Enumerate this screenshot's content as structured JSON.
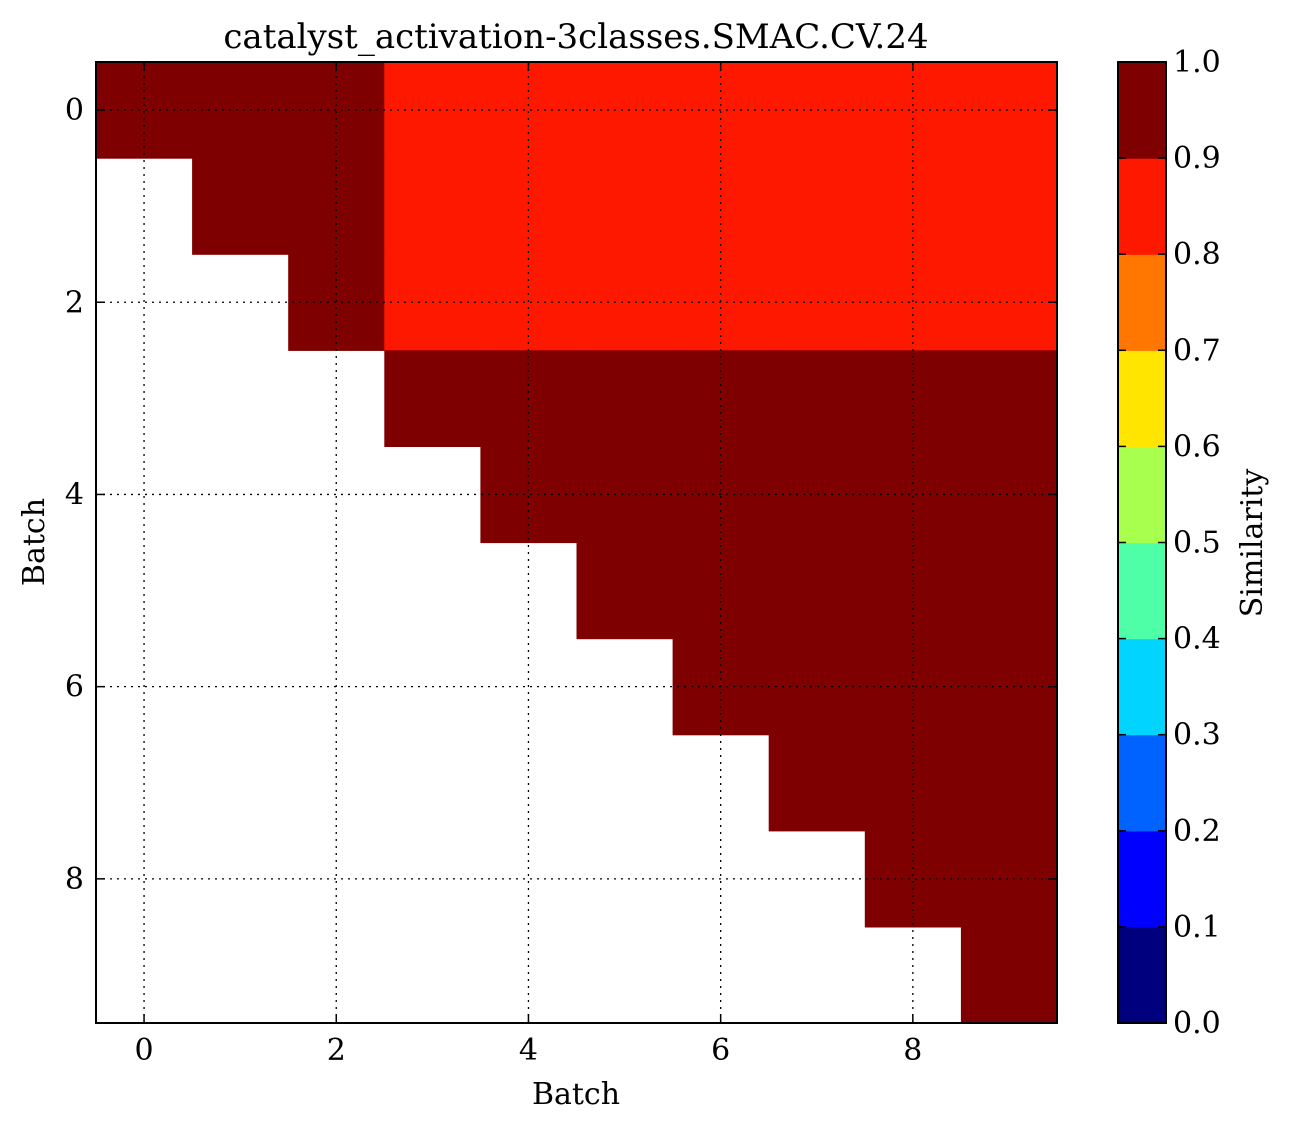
{
  "chart_data": {
    "type": "heatmap",
    "title": "catalyst_activation-3classes.SMAC.CV.24",
    "xlabel": "Batch",
    "ylabel": "Batch",
    "x_ticks": [
      "0",
      "2",
      "4",
      "6",
      "8"
    ],
    "y_ticks": [
      "0",
      "2",
      "4",
      "6",
      "8"
    ],
    "xlim": [
      -0.5,
      9.5
    ],
    "ylim": [
      9.5,
      -0.5
    ],
    "grid": true,
    "matrix": [
      [
        1.0,
        1.0,
        1.0,
        0.85,
        0.85,
        0.85,
        0.85,
        0.85,
        0.85,
        0.85
      ],
      [
        null,
        1.0,
        1.0,
        0.85,
        0.85,
        0.85,
        0.85,
        0.85,
        0.85,
        0.85
      ],
      [
        null,
        null,
        1.0,
        0.85,
        0.85,
        0.85,
        0.85,
        0.85,
        0.85,
        0.85
      ],
      [
        null,
        null,
        null,
        1.0,
        1.0,
        1.0,
        1.0,
        1.0,
        1.0,
        1.0
      ],
      [
        null,
        null,
        null,
        null,
        1.0,
        1.0,
        1.0,
        1.0,
        1.0,
        1.0
      ],
      [
        null,
        null,
        null,
        null,
        null,
        1.0,
        1.0,
        1.0,
        1.0,
        1.0
      ],
      [
        null,
        null,
        null,
        null,
        null,
        null,
        1.0,
        1.0,
        1.0,
        1.0
      ],
      [
        null,
        null,
        null,
        null,
        null,
        null,
        null,
        1.0,
        1.0,
        1.0
      ],
      [
        null,
        null,
        null,
        null,
        null,
        null,
        null,
        null,
        1.0,
        1.0
      ],
      [
        null,
        null,
        null,
        null,
        null,
        null,
        null,
        null,
        null,
        1.0
      ]
    ],
    "colorbar": {
      "label": "Similarity",
      "range": [
        0.0,
        1.0
      ],
      "tick_labels": [
        "0.0",
        "0.1",
        "0.2",
        "0.3",
        "0.4",
        "0.5",
        "0.6",
        "0.7",
        "0.8",
        "0.9",
        "1.0"
      ],
      "bin_colors": [
        "#00007f",
        "#0000ff",
        "#0063ff",
        "#00d4ff",
        "#4effa8",
        "#a8ff4e",
        "#ffe500",
        "#ff7700",
        "#ff1800",
        "#7f0000"
      ]
    }
  }
}
